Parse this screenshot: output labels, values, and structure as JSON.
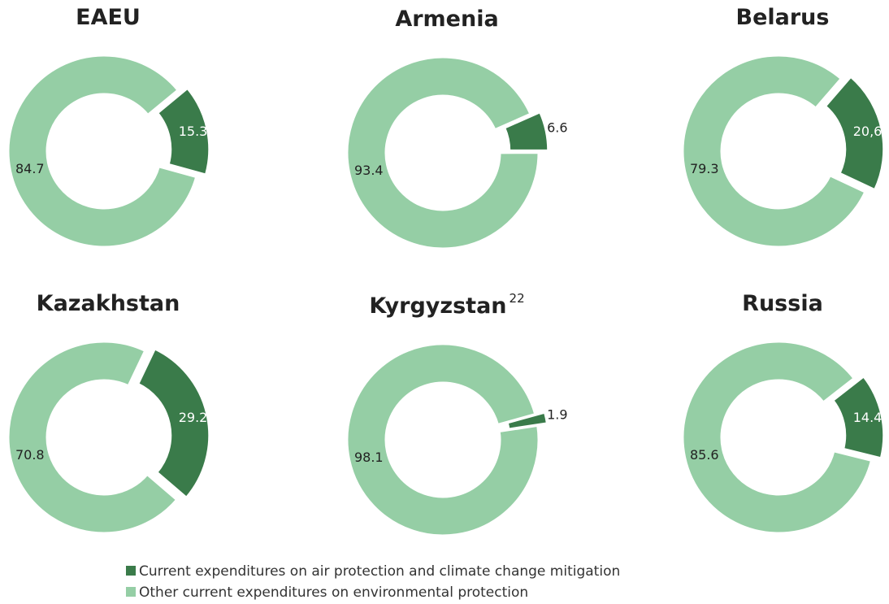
{
  "chart_data": [
    {
      "type": "pie",
      "title": "EAEU",
      "values": [
        15.3,
        84.7
      ]
    },
    {
      "type": "pie",
      "title": "Armenia",
      "values": [
        6.6,
        93.4
      ]
    },
    {
      "type": "pie",
      "title": "Belarus",
      "values": [
        20.6,
        79.3
      ],
      "value_labels": [
        "20,6",
        "79.3"
      ]
    },
    {
      "type": "pie",
      "title": "Kazakhstan",
      "values": [
        29.2,
        70.8
      ]
    },
    {
      "type": "pie",
      "title": "Kyrgyzstan",
      "title_note": "22",
      "values": [
        1.9,
        98.1
      ]
    },
    {
      "type": "pie",
      "title": "Russia",
      "values": [
        14.4,
        85.6
      ]
    }
  ],
  "legend": {
    "items": [
      {
        "name": "Current expenditures on air protection and climate change mitigation",
        "color": "#3a7b4a"
      },
      {
        "name": "Other current expenditures on environmental protection",
        "color": "#95cea5"
      }
    ]
  }
}
